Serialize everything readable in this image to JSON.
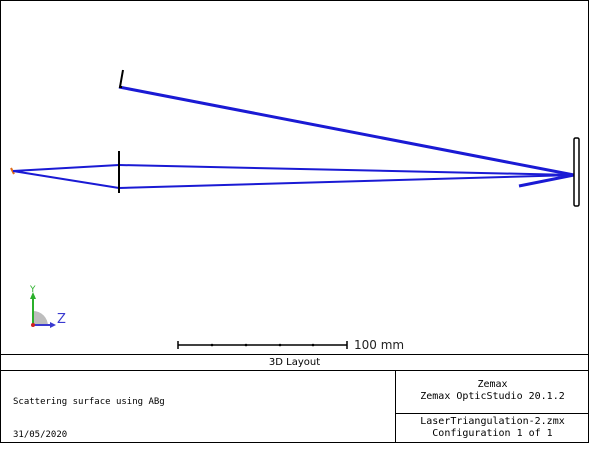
{
  "layout": {
    "view_title": "3D Layout",
    "scale_label": "100 mm",
    "axis_labels": {
      "y": "Y",
      "z": "Z"
    },
    "notes": [
      "Scattering surface using ABg",
      "31/05/2020"
    ],
    "company": "Zemax",
    "product": "Zemax OpticStudio 20.1.2",
    "file": "LaserTriangulation-2.zmx",
    "configuration": "Configuration 1 of 1"
  },
  "colors": {
    "rays": "#1a1ad4",
    "elements": "#000000",
    "source": "#e06a18",
    "axis_y": "#2bb02b",
    "axis_z": "#3a3ad0",
    "axis_x": "#cc2222"
  }
}
